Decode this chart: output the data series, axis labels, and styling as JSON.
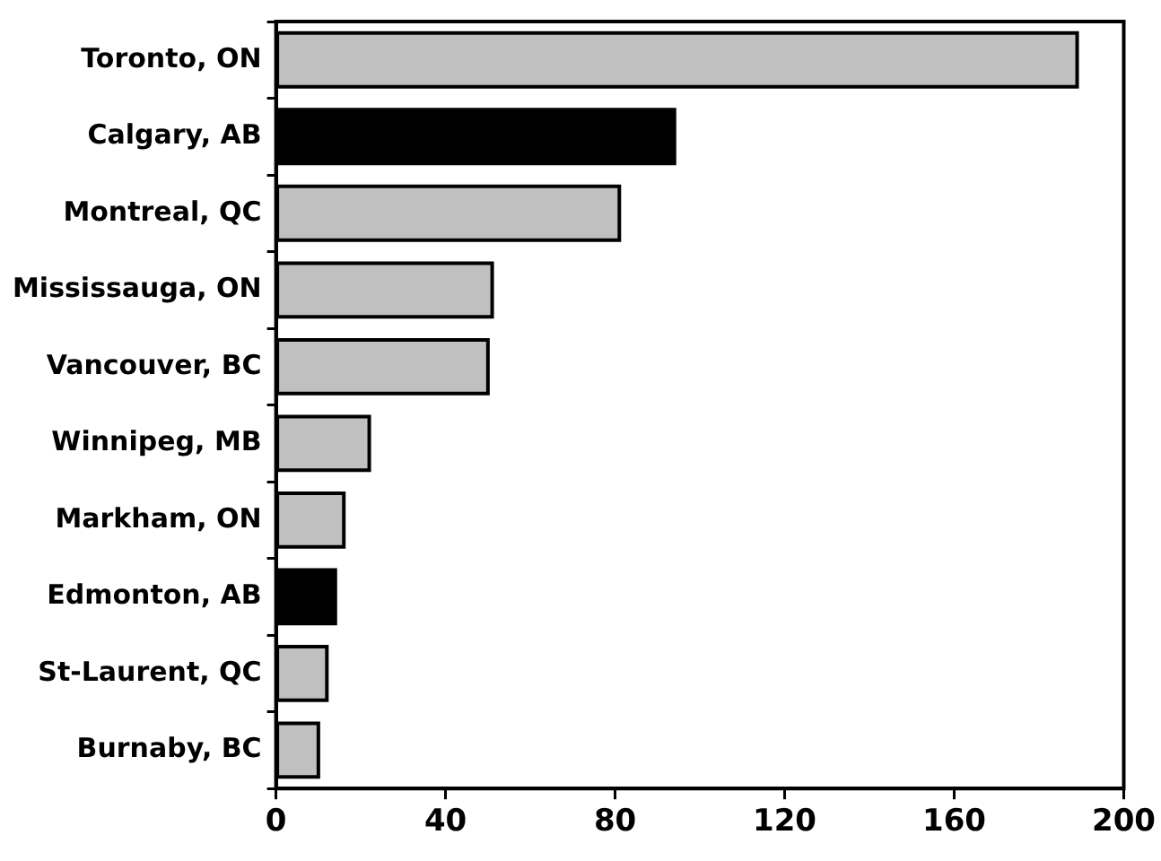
{
  "chart_data": {
    "type": "bar",
    "orientation": "horizontal",
    "categories": [
      "Toronto, ON",
      "Calgary, AB",
      "Montreal, QC",
      "Mississauga, ON",
      "Vancouver, BC",
      "Winnipeg, MB",
      "Markham, ON",
      "Edmonton, AB",
      "St-Laurent, QC",
      "Burnaby, BC"
    ],
    "values": [
      189,
      94,
      81,
      51,
      50,
      22,
      16,
      14,
      12,
      10
    ],
    "colors": [
      "#c0c0c0",
      "#000000",
      "#c0c0c0",
      "#c0c0c0",
      "#c0c0c0",
      "#c0c0c0",
      "#c0c0c0",
      "#000000",
      "#c0c0c0",
      "#c0c0c0"
    ],
    "xlim": [
      0,
      200
    ],
    "xticks": [
      0,
      40,
      80,
      120,
      160,
      200
    ],
    "grid": false,
    "legend": false
  }
}
